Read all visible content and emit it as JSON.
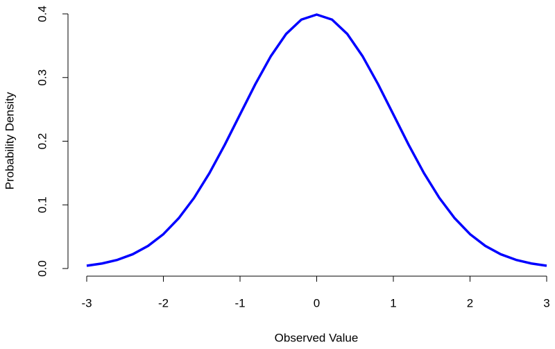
{
  "chart_data": {
    "type": "line",
    "x_label": "Observed Value",
    "y_label": "Probability Density",
    "x": [
      -3,
      -2.8,
      -2.6,
      -2.4,
      -2.2,
      -2,
      -1.8,
      -1.6,
      -1.4,
      -1.2,
      -1,
      -0.8,
      -0.6,
      -0.4,
      -0.2,
      0,
      0.2,
      0.4,
      0.6,
      0.8,
      1,
      1.2,
      1.4,
      1.6,
      1.8,
      2,
      2.2,
      2.4,
      2.6,
      2.8,
      3
    ],
    "series": [
      {
        "color": "#0000ff",
        "values": [
          0.0044,
          0.0079,
          0.0136,
          0.0224,
          0.0355,
          0.054,
          0.079,
          0.1109,
          0.1497,
          0.1942,
          0.242,
          0.2897,
          0.3332,
          0.3683,
          0.391,
          0.3989,
          0.391,
          0.3683,
          0.3332,
          0.2897,
          0.242,
          0.1942,
          0.1497,
          0.1109,
          0.079,
          0.054,
          0.0355,
          0.0224,
          0.0136,
          0.0079,
          0.0044
        ]
      }
    ],
    "xlim": [
      -3,
      3
    ],
    "ylim": [
      0,
      0.4
    ],
    "xticks": [
      -3,
      -2,
      -1,
      0,
      1,
      2,
      3
    ],
    "yticks": [
      {
        "value": 0,
        "label": "0.0"
      },
      0.1,
      0.2,
      0.3,
      0.4
    ]
  }
}
